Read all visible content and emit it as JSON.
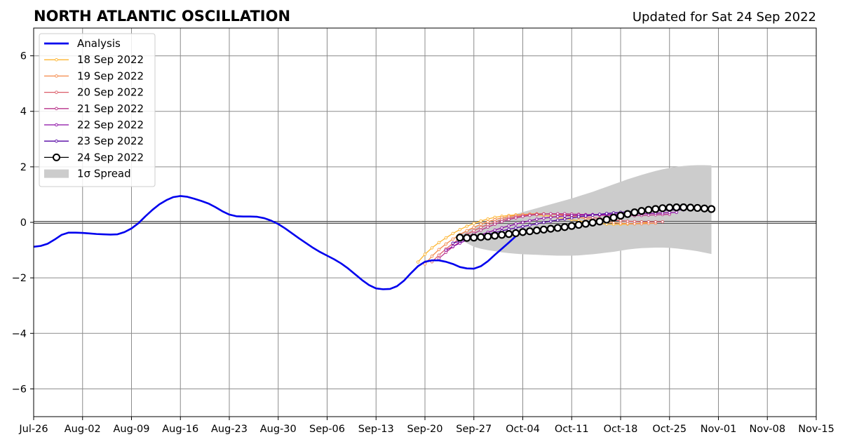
{
  "chart_data": {
    "type": "line",
    "title": "NORTH ATLANTIC OSCILLATION",
    "subtitle": "Updated for Sat 24 Sep 2022",
    "x_axis": {
      "type": "date",
      "range": [
        "2022-07-26",
        "2022-11-15"
      ],
      "ticks": [
        "Jul-26",
        "Aug-02",
        "Aug-09",
        "Aug-16",
        "Aug-23",
        "Aug-30",
        "Sep-06",
        "Sep-13",
        "Sep-20",
        "Sep-27",
        "Oct-04",
        "Oct-11",
        "Oct-18",
        "Oct-25",
        "Nov-01",
        "Nov-08",
        "Nov-15"
      ],
      "tick_dates": [
        "2022-07-26",
        "2022-08-02",
        "2022-08-09",
        "2022-08-16",
        "2022-08-23",
        "2022-08-30",
        "2022-09-06",
        "2022-09-13",
        "2022-09-20",
        "2022-09-27",
        "2022-10-04",
        "2022-10-11",
        "2022-10-18",
        "2022-10-25",
        "2022-11-01",
        "2022-11-08",
        "2022-11-15"
      ]
    },
    "y_axis": {
      "range": [
        -7,
        7
      ],
      "ticks": [
        -6,
        -4,
        -2,
        0,
        2,
        4,
        6
      ],
      "tick_labels": [
        "−6",
        "−4",
        "−2",
        "0",
        "2",
        "4",
        "6"
      ]
    },
    "grid": true,
    "zero_line": true,
    "legend": {
      "position": "top-left",
      "entries": [
        "Analysis",
        "18 Sep 2022",
        "19 Sep 2022",
        "20 Sep 2022",
        "21 Sep 2022",
        "22 Sep 2022",
        "23 Sep 2022",
        "24 Sep 2022",
        "1σ Spread"
      ]
    },
    "analysis": {
      "name": "Analysis",
      "color": "#0000ee",
      "start": "2022-07-26",
      "values": [
        -0.88,
        -0.85,
        -0.77,
        -0.62,
        -0.45,
        -0.37,
        -0.37,
        -0.38,
        -0.4,
        -0.42,
        -0.43,
        -0.44,
        -0.43,
        -0.35,
        -0.22,
        -0.03,
        0.22,
        0.45,
        0.65,
        0.8,
        0.91,
        0.95,
        0.92,
        0.85,
        0.77,
        0.68,
        0.55,
        0.4,
        0.28,
        0.22,
        0.21,
        0.21,
        0.2,
        0.15,
        0.06,
        -0.06,
        -0.22,
        -0.4,
        -0.58,
        -0.75,
        -0.92,
        -1.07,
        -1.2,
        -1.33,
        -1.48,
        -1.66,
        -1.87,
        -2.08,
        -2.26,
        -2.38,
        -2.41,
        -2.4,
        -2.3,
        -2.1,
        -1.83,
        -1.58,
        -1.42,
        -1.37,
        -1.37,
        -1.42,
        -1.5,
        -1.61,
        -1.66,
        -1.67,
        -1.58,
        -1.4,
        -1.17,
        -0.95,
        -0.73,
        -0.5
      ]
    },
    "forecasts": [
      {
        "name": "18 Sep 2022",
        "color": "#fdb42f",
        "start": "2022-09-19",
        "values": [
          -1.43,
          -1.15,
          -0.92,
          -0.73,
          -0.56,
          -0.4,
          -0.26,
          -0.14,
          -0.04,
          0.05,
          0.12,
          0.18,
          0.22,
          0.25,
          0.27,
          0.28,
          0.28,
          0.27,
          0.25,
          0.22,
          0.18,
          0.14,
          0.1,
          0.05,
          0.01,
          -0.02,
          -0.04,
          -0.06,
          -0.07,
          -0.07,
          -0.06,
          -0.05,
          -0.03,
          -0.01
        ]
      },
      {
        "name": "19 Sep 2022",
        "color": "#f48849",
        "start": "2022-09-20",
        "values": [
          -1.5,
          -1.22,
          -0.98,
          -0.78,
          -0.6,
          -0.44,
          -0.3,
          -0.18,
          -0.07,
          0.02,
          0.1,
          0.16,
          0.21,
          0.25,
          0.28,
          0.3,
          0.31,
          0.31,
          0.3,
          0.28,
          0.25,
          0.22,
          0.18,
          0.14,
          0.1,
          0.06,
          0.02,
          -0.01,
          -0.03,
          -0.04,
          -0.05,
          -0.05,
          -0.04,
          -0.03
        ]
      },
      {
        "name": "20 Sep 2022",
        "color": "#db5c68",
        "start": "2022-09-21",
        "values": [
          -1.42,
          -1.18,
          -0.96,
          -0.76,
          -0.58,
          -0.43,
          -0.3,
          -0.18,
          -0.08,
          0.01,
          0.09,
          0.15,
          0.2,
          0.24,
          0.27,
          0.29,
          0.3,
          0.3,
          0.29,
          0.28,
          0.26,
          0.23,
          0.2,
          0.17,
          0.14,
          0.11,
          0.08,
          0.06,
          0.04,
          0.03,
          0.02,
          0.02,
          0.02,
          0.02
        ]
      },
      {
        "name": "21 Sep 2022",
        "color": "#b83289",
        "start": "2022-09-22",
        "values": [
          -1.3,
          -1.08,
          -0.88,
          -0.7,
          -0.54,
          -0.4,
          -0.28,
          -0.17,
          -0.07,
          0.02,
          0.1,
          0.16,
          0.21,
          0.25,
          0.28,
          0.3,
          0.31,
          0.31,
          0.31,
          0.3,
          0.29,
          0.28,
          0.27,
          0.26,
          0.25,
          0.24,
          0.24,
          0.24,
          0.24,
          0.25,
          0.26,
          0.27,
          0.28,
          0.29
        ]
      },
      {
        "name": "22 Sep 2022",
        "color": "#8b0aa5",
        "start": "2022-09-23",
        "values": [
          -1.0,
          -0.87,
          -0.75,
          -0.64,
          -0.54,
          -0.45,
          -0.36,
          -0.28,
          -0.2,
          -0.13,
          -0.06,
          0.0,
          0.06,
          0.11,
          0.15,
          0.18,
          0.21,
          0.23,
          0.25,
          0.26,
          0.27,
          0.28,
          0.28,
          0.29,
          0.29,
          0.3,
          0.3,
          0.31,
          0.31,
          0.32,
          0.33,
          0.34,
          0.35,
          0.36
        ]
      },
      {
        "name": "23 Sep 2022",
        "color": "#5302a3",
        "start": "2022-09-24",
        "values": [
          -0.75,
          -0.68,
          -0.61,
          -0.55,
          -0.49,
          -0.43,
          -0.37,
          -0.31,
          -0.25,
          -0.2,
          -0.15,
          -0.1,
          -0.05,
          0.0,
          0.04,
          0.08,
          0.12,
          0.16,
          0.2,
          0.23,
          0.26,
          0.29,
          0.32,
          0.34,
          0.36,
          0.38,
          0.39,
          0.4,
          0.41,
          0.42,
          0.43,
          0.44,
          0.45,
          0.45
        ]
      },
      {
        "name": "24 Sep 2022",
        "color": "#000000",
        "marker": "open-circle",
        "start": "2022-09-25",
        "values": [
          -0.55,
          -0.56,
          -0.55,
          -0.53,
          -0.51,
          -0.48,
          -0.45,
          -0.42,
          -0.39,
          -0.35,
          -0.32,
          -0.29,
          -0.26,
          -0.23,
          -0.2,
          -0.17,
          -0.13,
          -0.09,
          -0.05,
          -0.01,
          0.03,
          0.1,
          0.17,
          0.24,
          0.3,
          0.36,
          0.41,
          0.45,
          0.48,
          0.51,
          0.53,
          0.54,
          0.54,
          0.53,
          0.52,
          0.5,
          0.48
        ]
      }
    ],
    "spread": {
      "name": "1σ Spread",
      "color": "#cccccc",
      "start": "2022-09-25",
      "upper": [
        -0.4,
        -0.3,
        -0.2,
        -0.1,
        -0.02,
        0.06,
        0.14,
        0.22,
        0.3,
        0.37,
        0.44,
        0.51,
        0.58,
        0.65,
        0.72,
        0.79,
        0.86,
        0.94,
        1.02,
        1.1,
        1.19,
        1.28,
        1.37,
        1.46,
        1.55,
        1.63,
        1.71,
        1.78,
        1.85,
        1.91,
        1.96,
        2.0,
        2.03,
        2.05,
        2.06,
        2.06,
        2.05
      ],
      "lower": [
        -0.6,
        -0.75,
        -0.88,
        -0.95,
        -1.0,
        -1.04,
        -1.08,
        -1.11,
        -1.13,
        -1.15,
        -1.16,
        -1.17,
        -1.18,
        -1.19,
        -1.2,
        -1.2,
        -1.2,
        -1.19,
        -1.17,
        -1.15,
        -1.12,
        -1.09,
        -1.06,
        -1.02,
        -0.98,
        -0.95,
        -0.93,
        -0.92,
        -0.91,
        -0.91,
        -0.92,
        -0.94,
        -0.97,
        -1.0,
        -1.04,
        -1.09,
        -1.14
      ]
    }
  }
}
